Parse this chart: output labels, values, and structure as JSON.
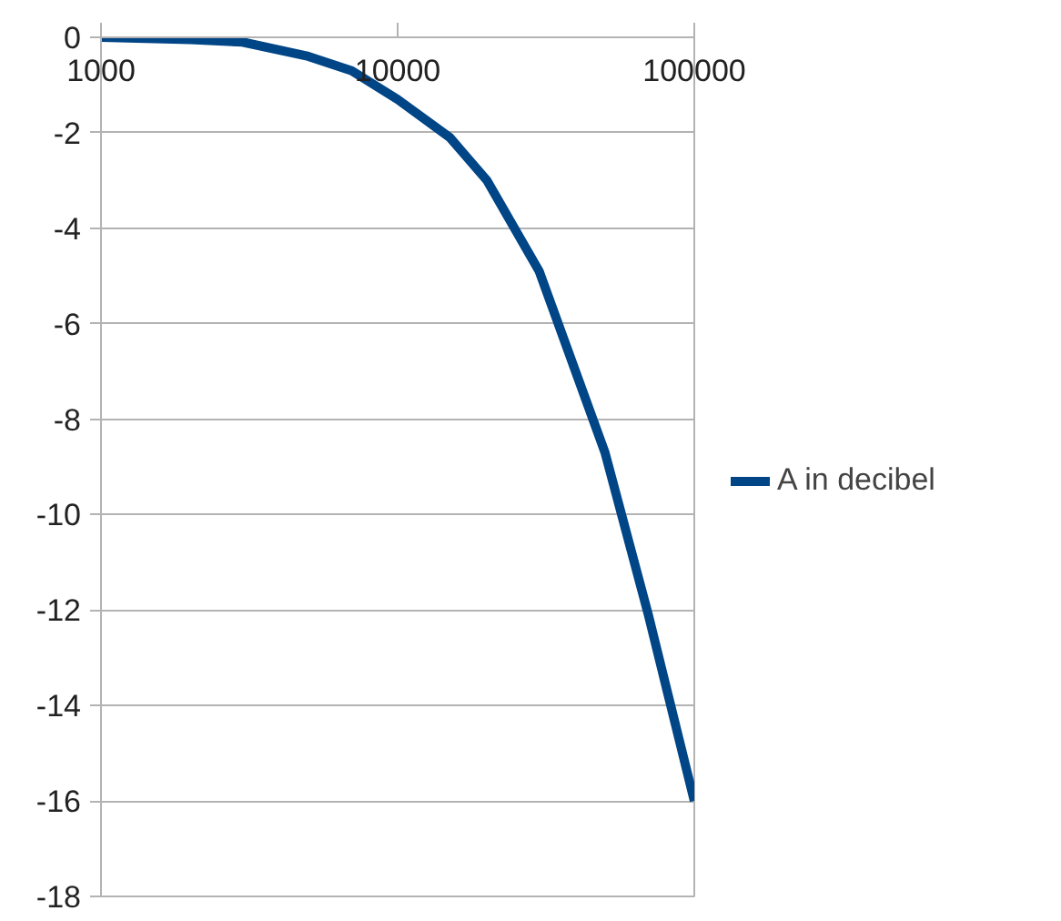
{
  "chart_data": {
    "type": "line",
    "log": "x",
    "x": [
      1000,
      2000,
      3000,
      5000,
      7000,
      10000,
      15000,
      20000,
      30000,
      50000,
      70000,
      100000
    ],
    "series": [
      {
        "name": "A in decibel",
        "color": "#004586",
        "values": [
          0,
          -0.05,
          -0.1,
          -0.4,
          -0.7,
          -1.3,
          -2.1,
          -3.0,
          -4.9,
          -8.7,
          -12.1,
          -16
        ]
      }
    ],
    "xlim": [
      1000,
      100000
    ],
    "xticks": [
      1000,
      10000,
      100000
    ],
    "ylim": [
      -18,
      0
    ],
    "yticks": [
      -18,
      -16,
      -14,
      -12,
      -10,
      -8,
      -6,
      -4,
      -2,
      0
    ],
    "grid": "y",
    "legend": "right",
    "line_style": "solid",
    "marker": "none"
  }
}
